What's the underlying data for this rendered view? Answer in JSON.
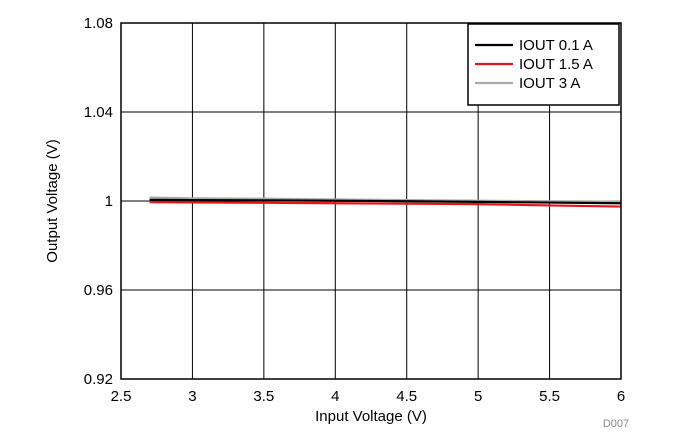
{
  "chart_data": {
    "type": "line",
    "title": "",
    "xlabel": "Input Voltage (V)",
    "ylabel": "Output Voltage (V)",
    "xlim": [
      2.5,
      6
    ],
    "ylim": [
      0.92,
      1.08
    ],
    "x_ticks": [
      2.5,
      3,
      3.5,
      4,
      4.5,
      5,
      5.5,
      6
    ],
    "x_tick_labels": [
      "2.5",
      "3",
      "3.5",
      "4",
      "4.5",
      "5",
      "5.5",
      "6"
    ],
    "y_ticks": [
      0.92,
      0.96,
      1.0,
      1.04,
      1.08
    ],
    "y_tick_labels": [
      "0.92",
      "0.96",
      "1",
      "1.04",
      "1.08"
    ],
    "grid": true,
    "legend_position": "top-right",
    "series": [
      {
        "name": "IOUT 0.1 A",
        "color": "#000000",
        "x": [
          2.7,
          3,
          3.5,
          4,
          4.5,
          5,
          5.5,
          6
        ],
        "y": [
          1.0005,
          1.0004,
          1.0003,
          1.0001,
          0.9999,
          0.9996,
          0.9993,
          0.999
        ]
      },
      {
        "name": "IOUT 1.5 A",
        "color": "#e8141c",
        "x": [
          2.7,
          3,
          3.5,
          4,
          4.5,
          5,
          5.5,
          6
        ],
        "y": [
          0.9995,
          0.9994,
          0.9992,
          0.999,
          0.9988,
          0.9986,
          0.998,
          0.9975
        ]
      },
      {
        "name": "IOUT 3 A",
        "color": "#a9a9a9",
        "x": [
          2.7,
          3,
          3.5,
          4,
          4.5,
          5,
          5.5,
          6
        ],
        "y": [
          1.0015,
          1.0012,
          1.001,
          1.0007,
          1.0004,
          1.0001,
          0.9999,
          0.9997
        ]
      }
    ]
  },
  "footer": {
    "code": "D007"
  }
}
